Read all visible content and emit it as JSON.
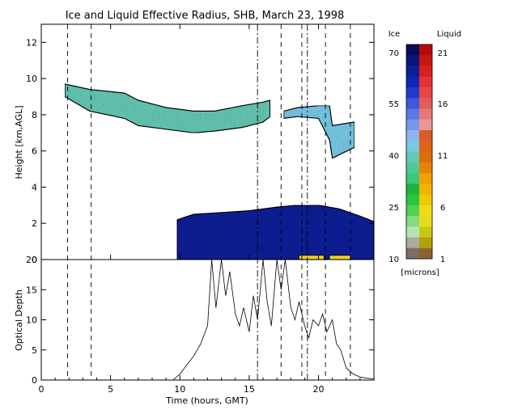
{
  "chart_data": [
    {
      "type": "heatmap",
      "title": "Ice and Liquid Effective Radius, SHB, March 23, 1998",
      "xlabel": "",
      "ylabel": "Height [km,AGL]",
      "xlim": [
        0,
        24
      ],
      "ylim": [
        0,
        13
      ],
      "yticks": [
        "0",
        "2",
        "4",
        "6",
        "8",
        "10",
        "12"
      ],
      "ice_layer": {
        "top": [
          [
            1.7,
            9.7
          ],
          [
            3.5,
            9.4
          ],
          [
            6,
            9.2
          ],
          [
            7,
            8.8
          ],
          [
            9,
            8.4
          ],
          [
            11,
            8.2
          ],
          [
            12.5,
            8.2
          ],
          [
            14.5,
            8.5
          ],
          [
            16,
            8.7
          ],
          [
            16.5,
            8.8
          ]
        ],
        "base": [
          [
            1.7,
            9.0
          ],
          [
            3.5,
            8.2
          ],
          [
            6,
            7.8
          ],
          [
            7,
            7.4
          ],
          [
            9,
            7.2
          ],
          [
            11,
            7.0
          ],
          [
            12.5,
            7.1
          ],
          [
            14.5,
            7.3
          ],
          [
            16,
            7.6
          ],
          [
            16.5,
            7.9
          ]
        ],
        "value_microns": 38
      },
      "ice_layer_2": {
        "top": [
          [
            17.5,
            8.2
          ],
          [
            18.5,
            8.4
          ],
          [
            20,
            8.5
          ],
          [
            20.8,
            8.5
          ],
          [
            21,
            7.4
          ],
          [
            22.6,
            7.6
          ]
        ],
        "base": [
          [
            17.5,
            7.8
          ],
          [
            18.5,
            7.9
          ],
          [
            20,
            7.8
          ],
          [
            20.8,
            6.6
          ],
          [
            21,
            5.6
          ],
          [
            22.6,
            6.2
          ]
        ],
        "value_microns": 42
      },
      "liquid_layer": {
        "top": [
          [
            9.8,
            2.2
          ],
          [
            11,
            2.5
          ],
          [
            13,
            2.6
          ],
          [
            15,
            2.7
          ],
          [
            17,
            2.9
          ],
          [
            18.5,
            3.0
          ],
          [
            20,
            3.0
          ],
          [
            21.5,
            2.8
          ],
          [
            23,
            2.4
          ],
          [
            24,
            2.1
          ]
        ],
        "base": [
          [
            9.8,
            0.0
          ],
          [
            24,
            0.0
          ]
        ],
        "value_microns": 62
      },
      "instrument_flag_bars": [
        [
          18.6,
          20.4
        ],
        [
          20.8,
          22.3
        ]
      ]
    },
    {
      "type": "line",
      "xlabel": "Time (hours, GMT)",
      "ylabel": "Optical Depth",
      "xlim": [
        0,
        24
      ],
      "ylim": [
        0,
        20
      ],
      "xticks": [
        "0",
        "5",
        "10",
        "15",
        "20"
      ],
      "yticks": [
        "0",
        "5",
        "10",
        "15",
        "20"
      ],
      "series": [
        {
          "x": [
            9.5,
            10,
            10.5,
            11,
            11.5,
            12,
            12.3,
            12.6,
            13,
            13.3,
            13.6,
            14,
            14.3,
            14.6,
            15,
            15.3,
            15.6,
            16,
            16.3,
            16.6,
            17,
            17.3,
            17.6,
            18,
            18.3,
            18.6,
            19,
            19.3,
            19.6,
            20,
            20.3,
            20.6,
            21,
            21.3,
            21.6,
            22,
            22.5,
            23,
            23.5,
            24
          ],
          "y": [
            0.0,
            1.0,
            2.5,
            4.0,
            6.0,
            9.0,
            20.0,
            12.0,
            20.0,
            14.0,
            18.0,
            11.0,
            9.0,
            12.0,
            8.0,
            14.0,
            10.0,
            20.0,
            13.0,
            9.0,
            20.0,
            15.0,
            20.0,
            12.0,
            10.0,
            13.0,
            9.0,
            7.0,
            10.0,
            9.0,
            11.0,
            8.0,
            10.0,
            6.0,
            5.0,
            2.0,
            1.0,
            0.5,
            0.3,
            0.2
          ]
        }
      ]
    }
  ],
  "event_lines": {
    "dashed": [
      1.9,
      3.6,
      17.3,
      18.8,
      20.5,
      22.3
    ],
    "dashdot": [
      15.6,
      19.2
    ]
  },
  "colorbar": {
    "ice_label": "Ice",
    "liquid_label": "Liquid",
    "units_label": "[microns]",
    "ice_ticks": [
      "70",
      "55",
      "40",
      "25",
      "10"
    ],
    "liquid_ticks": [
      "21",
      "16",
      "11",
      "6",
      "1"
    ],
    "ice_colors": [
      "#0a0a5a",
      "#0a1478",
      "#0a1e96",
      "#0a28b4",
      "#1e3cc8",
      "#3c5adc",
      "#5a78e6",
      "#7896ec",
      "#8cb4f0",
      "#78c8e6",
      "#64c8b4",
      "#50c896",
      "#3cc878",
      "#1eb43c",
      "#28c83c",
      "#50d250",
      "#82dc82",
      "#b4e6b4",
      "#aaaaa0",
      "#7d6e64"
    ],
    "liquid_colors": [
      "#b40a0a",
      "#c81414",
      "#dc1e1e",
      "#e63232",
      "#e64646",
      "#e65a5a",
      "#e67878",
      "#ec9696",
      "#dc5a28",
      "#dc6414",
      "#dc6e0a",
      "#e6820a",
      "#f0a000",
      "#f0b400",
      "#f0c800",
      "#f0dc14",
      "#e6dc1e",
      "#c8c814",
      "#b4a00a",
      "#8c6432"
    ]
  }
}
